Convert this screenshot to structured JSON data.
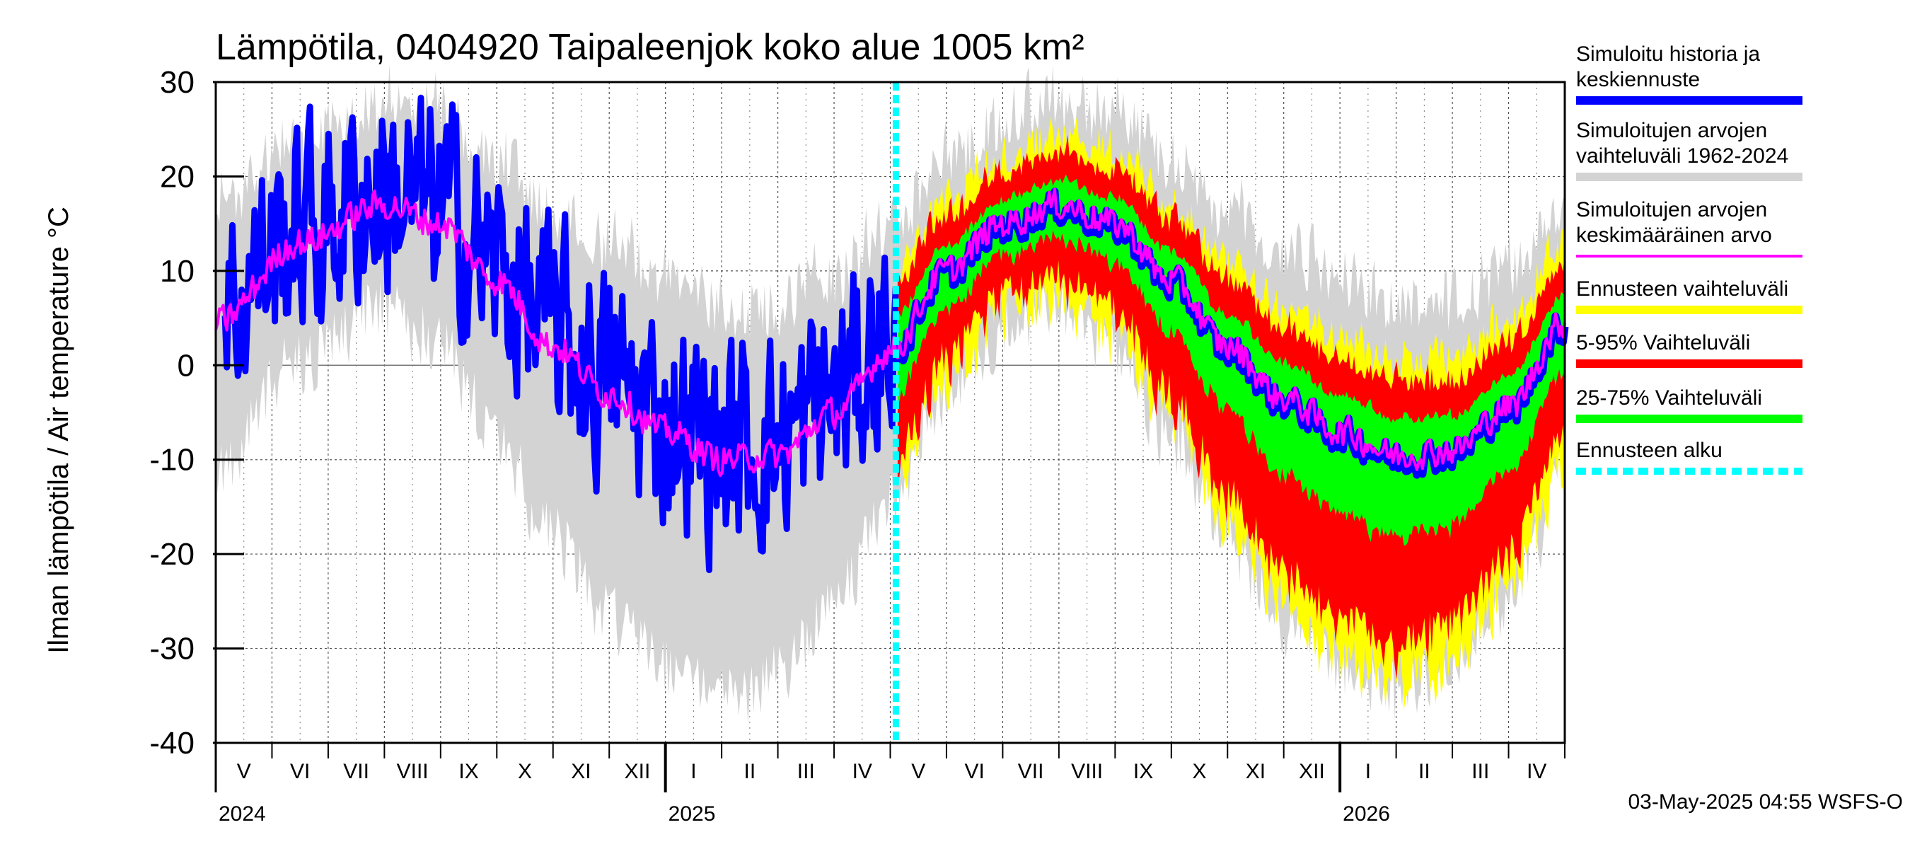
{
  "chart_data": {
    "type": "area",
    "title": "Lämpötila, 0404920 Taipaleenjok koko alue 1005 km²",
    "ylabel": "Ilman lämpötila / Air temperature   °C",
    "ylim": [
      -40,
      30
    ],
    "yticks": [
      30,
      20,
      10,
      0,
      -10,
      -20,
      -30,
      -40
    ],
    "x_range_months": [
      0,
      24
    ],
    "months": [
      "V",
      "VI",
      "VII",
      "VIII",
      "IX",
      "X",
      "XI",
      "XII",
      "I",
      "II",
      "III",
      "IV",
      "V",
      "VI",
      "VII",
      "VIII",
      "IX",
      "X",
      "XI",
      "XII",
      "I",
      "II",
      "III",
      "IV"
    ],
    "years": [
      {
        "label": "2024",
        "month_index": 0
      },
      {
        "label": "2025",
        "month_index": 8
      },
      {
        "label": "2026",
        "month_index": 20
      }
    ],
    "forecast_start_month": 12.1,
    "history_start": 0.15,
    "footer": "03-May-2025 04:55 WSFS-O",
    "mean_curve": {
      "t": [
        0.0,
        1.5,
        3.0,
        4.0,
        5.0,
        6.0,
        7.0,
        8.0,
        9.0,
        10.0,
        11.0,
        12.0,
        13.0,
        14.0,
        15.0,
        16.0,
        17.0,
        18.0,
        19.0,
        20.0,
        21.0,
        22.0,
        23.0,
        24.0
      ],
      "v": [
        4.5,
        13.0,
        17.0,
        15.0,
        9.0,
        2.0,
        -3.0,
        -7.0,
        -10.0,
        -9.5,
        -5.0,
        1.5,
        10.0,
        15.0,
        17.0,
        15.0,
        9.0,
        2.0,
        -3.5,
        -7.0,
        -9.5,
        -9.0,
        -4.5,
        4.5
      ]
    },
    "legend": [
      {
        "label": "Simuloitu historia ja\nkeskiennuste",
        "color": "#0000ff",
        "style": "solid"
      },
      {
        "label": "Simuloitujen arvojen\nvaihteluväli 1962-2024",
        "color": "#d3d3d3",
        "style": "solid"
      },
      {
        "label": "Simuloitujen arvojen\nkeskimääräinen arvo",
        "color": "#ff00ff",
        "style": "solid"
      },
      {
        "label": "Ennusteen vaihteluväli",
        "color": "#ffff00",
        "style": "solid"
      },
      {
        "label": "5-95% Vaihteluväli",
        "color": "#ff0000",
        "style": "solid"
      },
      {
        "label": "25-75% Vaihteluväli",
        "color": "#00ff00",
        "style": "solid"
      },
      {
        "label": "Ennusteen alku",
        "color": "#00ffff",
        "style": "dashed"
      }
    ],
    "colors": {
      "history": "#0000ff",
      "range": "#d3d3d3",
      "mean": "#ff00ff",
      "forecast_range": "#ffff00",
      "p5_95": "#ff0000",
      "p25_75": "#00ff00",
      "forecast_start": "#00ffff"
    }
  }
}
